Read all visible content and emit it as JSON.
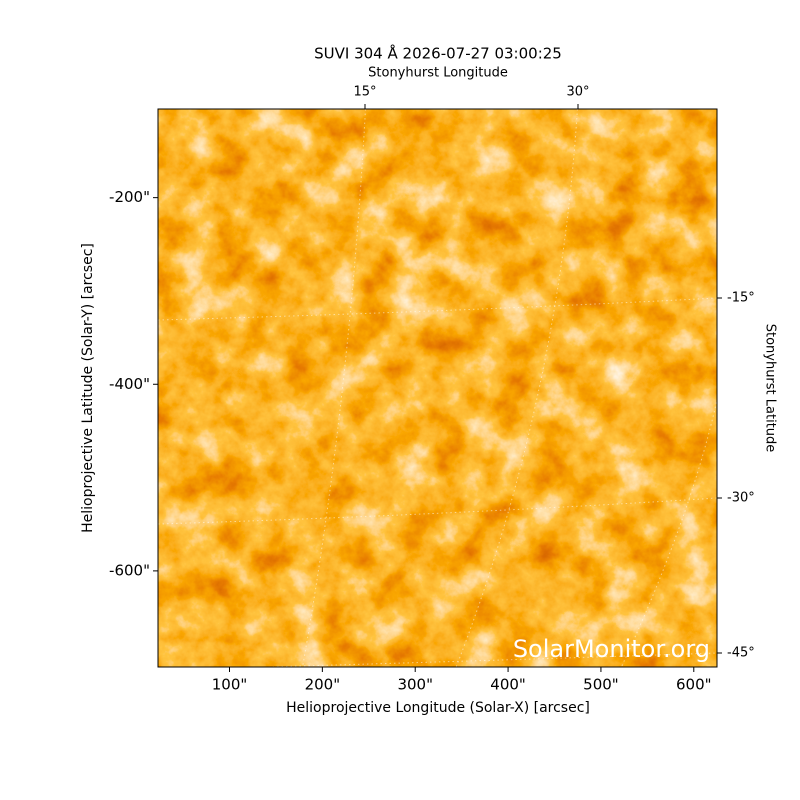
{
  "chart_data": {
    "type": "image",
    "title": "SUVI 304 Å 2026-07-27 03:00:25",
    "xlabel": "Helioprojective Longitude (Solar-X) [arcsec]",
    "ylabel": "Helioprojective Latitude (Solar-Y) [arcsec]",
    "top_label": "Stonyhurst Longitude",
    "right_label": "Stonyhurst Latitude",
    "watermark": "SolarMonitor.org",
    "xlim": [
      23,
      625
    ],
    "ylim": [
      -703,
      -105
    ],
    "xticks": [
      {
        "value": 100,
        "label": "100\""
      },
      {
        "value": 200,
        "label": "200\""
      },
      {
        "value": 300,
        "label": "300\""
      },
      {
        "value": 400,
        "label": "400\""
      },
      {
        "value": 500,
        "label": "500\""
      },
      {
        "value": 600,
        "label": "600\""
      }
    ],
    "yticks": [
      {
        "value": -200,
        "label": "-200\""
      },
      {
        "value": -400,
        "label": "-400\""
      },
      {
        "value": -600,
        "label": "-600\""
      }
    ],
    "top_ticks": [
      {
        "value": 15,
        "label": "15°"
      },
      {
        "value": 30,
        "label": "30°"
      }
    ],
    "right_ticks": [
      {
        "value": -15,
        "label": "-15°"
      },
      {
        "value": -30,
        "label": "-30°"
      },
      {
        "value": -45,
        "label": "-45°"
      }
    ]
  }
}
